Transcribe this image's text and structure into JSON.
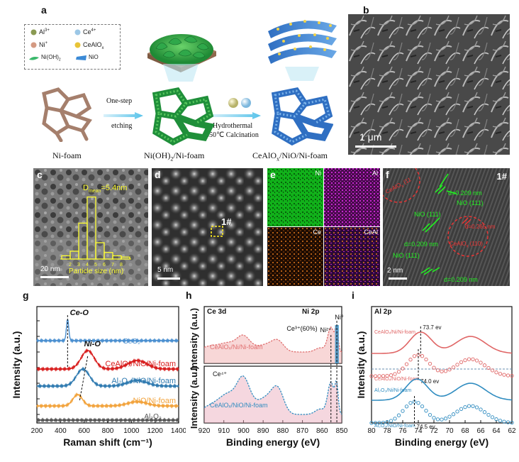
{
  "panels": {
    "a": "a",
    "b": "b",
    "c": "c",
    "d": "d",
    "e": "e",
    "f": "f",
    "g": "g",
    "h": "h",
    "i": "i"
  },
  "a": {
    "legend": [
      {
        "sym": "Al",
        "sup": "3+",
        "color": "#8a9a52"
      },
      {
        "sym": "Ce",
        "sup": "4+",
        "color": "#9cc7e6"
      },
      {
        "sym": "Ni",
        "sup": "+",
        "color": "#d49a82"
      },
      {
        "sym": "CeAlO",
        "sub": "x",
        "color": "#e8c437"
      },
      {
        "sym": "Ni(OH)",
        "sub": "2",
        "color": "#39b86b"
      },
      {
        "sym": "NiO",
        "color": "#3b8ad6"
      }
    ],
    "step1": [
      "One-step",
      "etching"
    ],
    "step2": [
      "Hydrothermal",
      "450℃ Calcination"
    ],
    "captions": {
      "nifoam": "Ni-foam",
      "nioh": "Ni(OH)",
      "nioh_sub": "2",
      "nioh_tail": "/Ni-foam",
      "ce": "CeAlO",
      "ce_sub": "x",
      "ce_tail": "/NiO/Ni-foam"
    }
  },
  "b": {
    "scale": "1 μm"
  },
  "c": {
    "dmean": "D",
    "dmean_sub": "mean",
    "dmean_val": "=5.4nm",
    "xlabel": "Particle size (nm)",
    "xticks": [
      "2",
      "3",
      "4",
      "5",
      "6",
      "7",
      "8"
    ],
    "scale": "20 nm"
  },
  "d": {
    "marker": "1#",
    "scale": "5 nm"
  },
  "e": {
    "maps": [
      "Ni",
      "Al",
      "Ce",
      "CeAl"
    ]
  },
  "f": {
    "tag": "1#",
    "labels": [
      "d=0.209 nm",
      "NiO (111)",
      "NiO (111)",
      "d=0.209 nm",
      "NiO (111)",
      "d=0.209 nm"
    ],
    "ce1": "CeAlO",
    "ce1_sub": "x",
    "ce1_tail": " (11",
    "ce2": "CeAlO",
    "ce2_sub": "x",
    "ce2_tail": " (110)",
    "d265": "d=0.265 nm",
    "scale": "2 nm"
  },
  "chart_data": [
    {
      "type": "line",
      "panel": "g",
      "xlabel": "Raman shift (cm⁻¹)",
      "ylabel": "Intensity (a.u.)",
      "xlim": [
        200,
        1400
      ],
      "xticks": [
        "200",
        "400",
        "600",
        "800",
        "1000",
        "1200",
        "1400"
      ],
      "series": [
        {
          "name": "CeO₂",
          "color": "#4a8fd0",
          "peak": 460
        },
        {
          "name": "CeAlOₓ/NiO/Ni-foam",
          "color": "#d81e1e",
          "peak": 630
        },
        {
          "name": "Al₂O₃/NiO/Ni-foam",
          "color": "#2f7ab0",
          "peak": 590
        },
        {
          "name": "NiO/Ni-foam",
          "color": "#f2a33c",
          "peak": 545
        },
        {
          "name": "Al₂O₃",
          "color": "#555555",
          "peak": null
        }
      ],
      "annotations": [
        "Ce-O",
        "Ni-O"
      ]
    },
    {
      "type": "line",
      "panel": "h",
      "xlabel": "Binding energy (eV)",
      "ylabel": "Intensity (a.u.)",
      "xlim": [
        920,
        850
      ],
      "xticks": [
        "920",
        "910",
        "900",
        "890",
        "880",
        "870",
        "860",
        "850"
      ],
      "titles": [
        "Ce 3d",
        "Ni 2p"
      ],
      "annotations": [
        "Ce³⁺(60%)",
        "Ni²⁺",
        "Ni⁰",
        "Ce⁴⁺"
      ],
      "series": [
        {
          "name": "CeAlOₓ/Ni/Ni-foam",
          "color": "#e07070"
        },
        {
          "name": "CeAlOₓ/NiO/Ni-foam",
          "color": "#2f8cc0"
        }
      ]
    },
    {
      "type": "line",
      "panel": "i",
      "xlabel": "Binding energy (eV)",
      "ylabel": "Intensity (a.u.)",
      "xlim": [
        80,
        62
      ],
      "xticks": [
        "80",
        "78",
        "76",
        "74",
        "72",
        "70",
        "68",
        "66",
        "64",
        "62"
      ],
      "title": "Al 2p",
      "series": [
        {
          "name": "CeAlOₓ/Ni/Ni-foam",
          "color": "#e06666",
          "peak": "73.7 ev"
        },
        {
          "name": "CeAlOₓ/NiO/Ni-foam",
          "color": "#e06666",
          "peak": "74.0 ev"
        },
        {
          "name": "Al₂O₃/Ni/Ni-foam",
          "color": "#2f8cc0",
          "peak": ""
        },
        {
          "name": "Al₂O₃/NiO/Ni-foam",
          "color": "#2f8cc0",
          "peak": "74.5 ev"
        }
      ]
    }
  ]
}
